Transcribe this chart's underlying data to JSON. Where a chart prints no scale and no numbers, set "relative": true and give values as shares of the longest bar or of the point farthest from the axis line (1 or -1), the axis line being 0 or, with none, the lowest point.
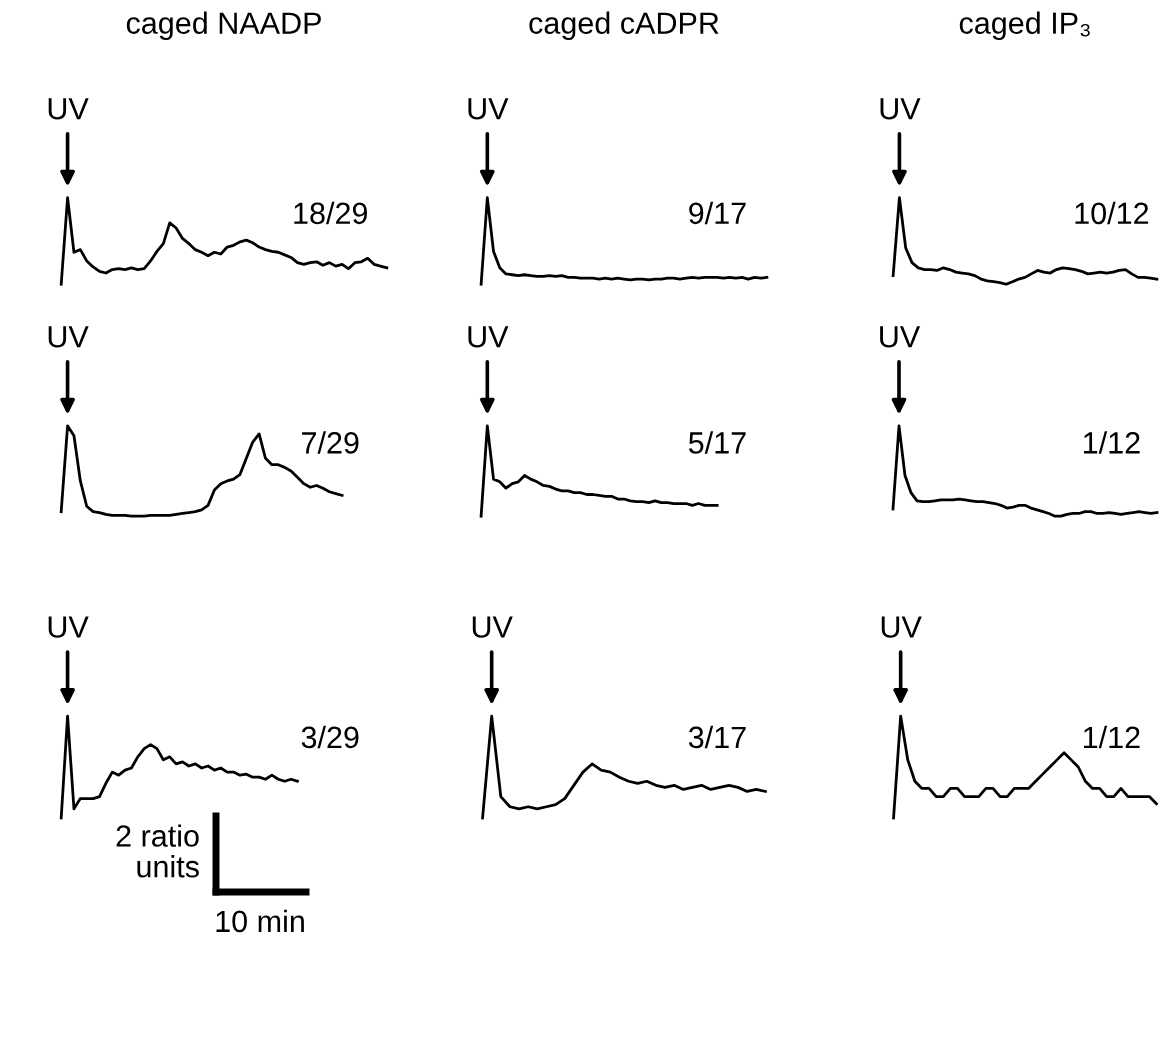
{
  "chart_data": [
    {
      "type": "line",
      "relative": true,
      "title": "caged NAADP",
      "color": "#000000",
      "annotations": [
        "UV",
        "18/29"
      ],
      "categories": [
        null,
        null,
        null,
        null,
        null,
        null,
        null,
        null,
        null,
        null,
        null,
        null,
        null,
        null,
        null,
        null,
        null,
        null,
        null,
        null,
        null,
        null,
        null,
        null,
        null,
        null,
        null,
        null,
        null,
        null,
        null,
        null,
        null,
        null,
        null,
        null,
        null,
        null,
        null,
        null,
        null,
        null,
        null,
        null,
        null,
        null,
        null,
        null,
        null,
        null,
        null,
        null
      ],
      "values": [
        0,
        1,
        0.37,
        0.4,
        0.27,
        0.2,
        0.15,
        0.13,
        0.17,
        0.18,
        0.17,
        0.19,
        0.17,
        0.18,
        0.27,
        0.38,
        0.47,
        0.71,
        0.65,
        0.53,
        0.47,
        0.4,
        0.37,
        0.33,
        0.37,
        0.35,
        0.43,
        0.45,
        0.49,
        0.51,
        0.48,
        0.43,
        0.4,
        0.38,
        0.37,
        0.34,
        0.31,
        0.25,
        0.23,
        0.25,
        0.26,
        0.22,
        0.25,
        0.21,
        0.23,
        0.18,
        0.25,
        0.26,
        0.3,
        0.23,
        0.21,
        0.19
      ]
    },
    {
      "type": "line",
      "relative": true,
      "title": "caged cADPR",
      "color": "#000000",
      "annotations": [
        "UV",
        "9/17"
      ],
      "categories": [
        null,
        null,
        null,
        null,
        null,
        null,
        null,
        null,
        null,
        null,
        null,
        null,
        null,
        null,
        null,
        null,
        null,
        null,
        null,
        null,
        null,
        null,
        null,
        null,
        null,
        null,
        null,
        null,
        null,
        null,
        null,
        null,
        null,
        null,
        null,
        null,
        null,
        null,
        null,
        null,
        null,
        null,
        null,
        null,
        null,
        null,
        null
      ],
      "values": [
        0,
        1,
        0.38,
        0.19,
        0.12,
        0.11,
        0.1,
        0.11,
        0.1,
        0.09,
        0.09,
        0.1,
        0.09,
        0.1,
        0.08,
        0.08,
        0.07,
        0.07,
        0.07,
        0.06,
        0.07,
        0.06,
        0.07,
        0.06,
        0.05,
        0.06,
        0.06,
        0.05,
        0.06,
        0.06,
        0.07,
        0.07,
        0.06,
        0.07,
        0.08,
        0.07,
        0.08,
        0.08,
        0.08,
        0.07,
        0.08,
        0.07,
        0.08,
        0.06,
        0.08,
        0.07,
        0.08
      ]
    },
    {
      "type": "line",
      "relative": true,
      "title": "caged IP₃",
      "color": "#000000",
      "annotations": [
        "UV",
        "10/12"
      ],
      "categories": [
        null,
        null,
        null,
        null,
        null,
        null,
        null,
        null,
        null,
        null,
        null,
        null,
        null,
        null,
        null,
        null,
        null,
        null,
        null,
        null,
        null,
        null,
        null,
        null,
        null,
        null,
        null,
        null,
        null,
        null,
        null,
        null,
        null,
        null,
        null,
        null,
        null,
        null,
        null,
        null,
        null,
        null,
        null
      ],
      "values": [
        0.1,
        1,
        0.42,
        0.25,
        0.19,
        0.17,
        0.17,
        0.16,
        0.19,
        0.17,
        0.14,
        0.13,
        0.12,
        0.1,
        0.06,
        0.04,
        0.03,
        0.02,
        0,
        0.03,
        0.06,
        0.08,
        0.12,
        0.16,
        0.14,
        0.13,
        0.17,
        0.19,
        0.18,
        0.17,
        0.15,
        0.12,
        0.13,
        0.14,
        0.13,
        0.14,
        0.16,
        0.17,
        0.12,
        0.08,
        0.08,
        0.07,
        0.06
      ]
    },
    {
      "type": "line",
      "relative": true,
      "color": "#000000",
      "annotations": [
        "UV",
        "7/29"
      ],
      "categories": [
        null,
        null,
        null,
        null,
        null,
        null,
        null,
        null,
        null,
        null,
        null,
        null,
        null,
        null,
        null,
        null,
        null,
        null,
        null,
        null,
        null,
        null,
        null,
        null,
        null,
        null,
        null,
        null,
        null,
        null,
        null,
        null,
        null,
        null,
        null,
        null,
        null,
        null,
        null,
        null,
        null,
        null,
        null,
        null,
        null,
        null,
        null,
        null,
        null,
        null,
        null,
        null
      ],
      "values": [
        0.05,
        1,
        0.89,
        0.39,
        0.11,
        0.05,
        0.04,
        0.02,
        0.01,
        0.01,
        0.01,
        0,
        0,
        0,
        0.01,
        0.01,
        0.01,
        0.01,
        0.02,
        0.03,
        0.04,
        0.05,
        0.07,
        0.12,
        0.29,
        0.36,
        0.39,
        0.41,
        0.46,
        0.64,
        0.82,
        0.91,
        0.64,
        0.57,
        0.57,
        0.54,
        0.5,
        0.43,
        0.36,
        0.32,
        0.34,
        0.31,
        0.27,
        0.25,
        0.23,
        null,
        null,
        null,
        null,
        null,
        null,
        null
      ]
    },
    {
      "type": "line",
      "relative": true,
      "color": "#000000",
      "annotations": [
        "UV",
        "5/17"
      ],
      "categories": [
        null,
        null,
        null,
        null,
        null,
        null,
        null,
        null,
        null,
        null,
        null,
        null,
        null,
        null,
        null,
        null,
        null,
        null,
        null,
        null,
        null,
        null,
        null,
        null,
        null,
        null,
        null,
        null,
        null,
        null,
        null,
        null,
        null,
        null,
        null,
        null,
        null,
        null,
        null,
        null,
        null,
        null,
        null,
        null,
        null,
        null,
        null
      ],
      "values": [
        0,
        1,
        0.41,
        0.38,
        0.31,
        0.36,
        0.38,
        0.45,
        0.41,
        0.38,
        0.34,
        0.33,
        0.3,
        0.28,
        0.28,
        0.26,
        0.26,
        0.24,
        0.24,
        0.23,
        0.22,
        0.22,
        0.19,
        0.19,
        0.17,
        0.16,
        0.16,
        0.15,
        0.17,
        0.15,
        0.15,
        0.14,
        0.14,
        0.14,
        0.12,
        0.14,
        0.12,
        0.12,
        0.12,
        null,
        null,
        null,
        null,
        null,
        null,
        null,
        null
      ]
    },
    {
      "type": "line",
      "relative": true,
      "color": "#000000",
      "annotations": [
        "UV",
        "1/12"
      ],
      "categories": [
        null,
        null,
        null,
        null,
        null,
        null,
        null,
        null,
        null,
        null,
        null,
        null,
        null,
        null,
        null,
        null,
        null,
        null,
        null,
        null,
        null,
        null,
        null,
        null,
        null,
        null,
        null,
        null,
        null,
        null,
        null,
        null,
        null,
        null,
        null,
        null,
        null,
        null,
        null,
        null,
        null,
        null,
        null,
        null,
        null
      ],
      "values": [
        0.08,
        1,
        0.45,
        0.26,
        0.17,
        0.16,
        0.16,
        0.17,
        0.18,
        0.18,
        0.18,
        0.19,
        0.18,
        0.17,
        0.16,
        0.16,
        0.15,
        0.14,
        0.12,
        0.09,
        0.1,
        0.12,
        0.12,
        0.09,
        0.07,
        0.05,
        0.03,
        0,
        0,
        0.02,
        0.03,
        0.03,
        0.05,
        0.05,
        0.03,
        0.03,
        0.04,
        0.03,
        0.02,
        0.03,
        0.04,
        0.05,
        0.04,
        0.03,
        0.04
      ]
    },
    {
      "type": "line",
      "relative": true,
      "color": "#000000",
      "annotations": [
        "UV",
        "3/29",
        "2 ratio\nunits",
        "10 min"
      ],
      "categories": [
        null,
        null,
        null,
        null,
        null,
        null,
        null,
        null,
        null,
        null,
        null,
        null,
        null,
        null,
        null,
        null,
        null,
        null,
        null,
        null,
        null,
        null,
        null,
        null,
        null,
        null,
        null,
        null,
        null,
        null,
        null,
        null,
        null,
        null,
        null,
        null,
        null,
        null,
        null,
        null,
        null,
        null,
        null,
        null,
        null,
        null,
        null,
        null,
        null,
        null,
        null,
        null
      ],
      "values": [
        0,
        1,
        0.09,
        0.19,
        0.19,
        0.19,
        0.21,
        0.34,
        0.45,
        0.42,
        0.47,
        0.49,
        0.6,
        0.68,
        0.72,
        0.68,
        0.57,
        0.6,
        0.53,
        0.55,
        0.51,
        0.53,
        0.49,
        0.51,
        0.47,
        0.49,
        0.45,
        0.45,
        0.42,
        0.43,
        0.4,
        0.4,
        0.38,
        0.42,
        0.38,
        0.36,
        0.38,
        0.36,
        null,
        null,
        null,
        null,
        null,
        null,
        null,
        null,
        null,
        null,
        null,
        null,
        null,
        null
      ]
    },
    {
      "type": "line",
      "relative": true,
      "color": "#000000",
      "annotations": [
        "UV",
        "3/17"
      ],
      "categories": [
        null,
        null,
        null,
        null,
        null,
        null,
        null,
        null,
        null,
        null,
        null,
        null,
        null,
        null,
        null,
        null,
        null,
        null,
        null,
        null,
        null,
        null,
        null,
        null,
        null,
        null,
        null,
        null,
        null,
        null,
        null,
        null
      ],
      "values": [
        0,
        1,
        0.21,
        0.11,
        0.09,
        0.11,
        0.09,
        0.11,
        0.13,
        0.19,
        0.32,
        0.45,
        0.53,
        0.47,
        0.45,
        0.4,
        0.36,
        0.34,
        0.36,
        0.32,
        0.3,
        0.32,
        0.28,
        0.3,
        0.32,
        0.28,
        0.3,
        0.32,
        0.3,
        0.26,
        0.28,
        0.26
      ]
    },
    {
      "type": "line",
      "relative": true,
      "color": "#000000",
      "annotations": [
        "UV",
        "1/12"
      ],
      "categories": [
        null,
        null,
        null,
        null,
        null,
        null,
        null,
        null,
        null,
        null,
        null,
        null,
        null,
        null,
        null,
        null,
        null,
        null,
        null,
        null,
        null,
        null,
        null,
        null,
        null,
        null,
        null,
        null,
        null,
        null,
        null,
        null,
        null,
        null,
        null,
        null,
        null,
        null
      ],
      "values": [
        0,
        1,
        0.57,
        0.36,
        0.29,
        0.29,
        0.21,
        0.21,
        0.29,
        0.29,
        0.21,
        0.21,
        0.21,
        0.29,
        0.29,
        0.21,
        0.21,
        0.29,
        0.29,
        0.29,
        0.36,
        0.43,
        0.5,
        0.57,
        0.64,
        0.57,
        0.5,
        0.36,
        0.29,
        0.29,
        0.21,
        0.21,
        0.29,
        0.21,
        0.21,
        0.21,
        0.21,
        0.14
      ]
    }
  ]
}
